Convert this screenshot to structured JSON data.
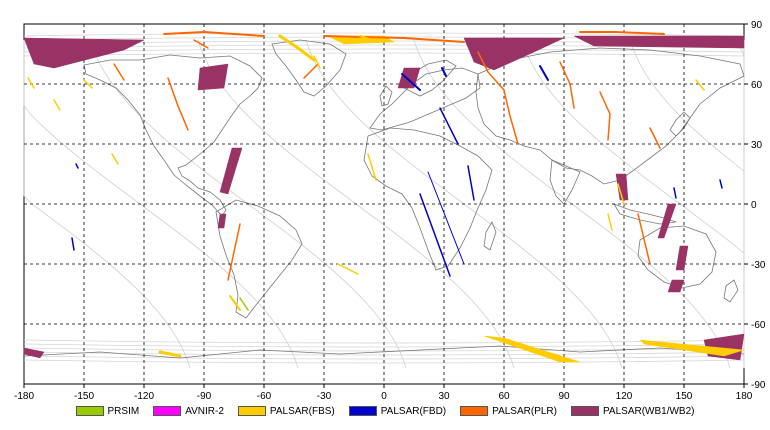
{
  "map": {
    "lon_ticks": [
      "-180",
      "-150",
      "-120",
      "-90",
      "-60",
      "-30",
      "0",
      "30",
      "60",
      "90",
      "120",
      "150",
      "180"
    ],
    "lat_ticks": [
      "90",
      "60",
      "30",
      "0",
      "-30",
      "-60",
      "-90"
    ],
    "extent": {
      "lon": [
        -180,
        180
      ],
      "lat": [
        -90,
        90
      ]
    },
    "grid": "dashed",
    "colors": {
      "PRSIM": "#99cc00",
      "AVNIR-2": "#ff00ff",
      "PALSAR(FBS)": "#ffcc00",
      "PALSAR(FBD)": "#0000cc",
      "PALSAR(PLR)": "#ff6600",
      "PALSAR(WB1/WB2)": "#993366"
    }
  },
  "legend": [
    {
      "label": "PRSIM",
      "color": "#99cc00"
    },
    {
      "label": "AVNIR-2",
      "color": "#ff00ff"
    },
    {
      "label": "PALSAR(FBS)",
      "color": "#ffcc00"
    },
    {
      "label": "PALSAR(FBD)",
      "color": "#0000cc"
    },
    {
      "label": "PALSAR(PLR)",
      "color": "#ff6600"
    },
    {
      "label": "PALSAR(WB1/WB2)",
      "color": "#993366"
    }
  ]
}
